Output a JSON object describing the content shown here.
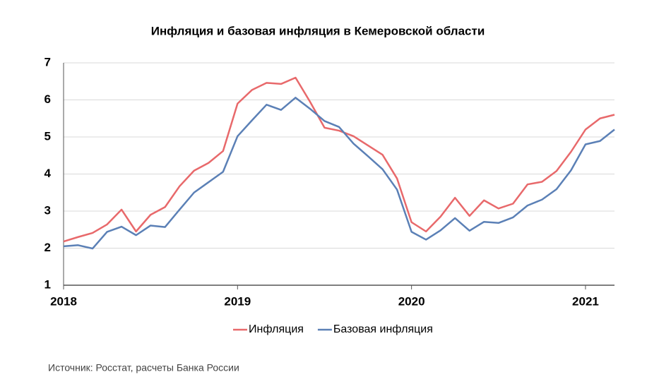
{
  "chart_data": {
    "type": "line",
    "title": "Инфляция и базовая инфляция в Кемеровской области",
    "categories": [
      "2018",
      null,
      null,
      null,
      null,
      null,
      null,
      null,
      null,
      null,
      null,
      null,
      "2019",
      null,
      null,
      null,
      null,
      null,
      null,
      null,
      null,
      null,
      null,
      null,
      "2020",
      null,
      null,
      null,
      null,
      null,
      null,
      null,
      null,
      null,
      null,
      null,
      "2021",
      null,
      null
    ],
    "series": [
      {
        "name": "Инфляция",
        "color": "#e8696b",
        "values": [
          2.18,
          2.3,
          2.41,
          2.64,
          3.04,
          2.45,
          2.9,
          3.11,
          3.67,
          4.09,
          4.3,
          4.62,
          5.9,
          6.27,
          6.46,
          6.43,
          6.6,
          5.95,
          5.25,
          5.17,
          5.02,
          4.77,
          4.52,
          3.88,
          2.7,
          2.45,
          2.85,
          3.36,
          2.87,
          3.29,
          3.07,
          3.2,
          3.72,
          3.79,
          4.08,
          4.6,
          5.2,
          5.5,
          5.6
        ]
      },
      {
        "name": "Базовая инфляция",
        "color": "#5b80b6",
        "values": [
          2.05,
          2.08,
          1.99,
          2.44,
          2.58,
          2.35,
          2.61,
          2.57,
          3.04,
          3.5,
          3.78,
          4.06,
          5.02,
          5.45,
          5.87,
          5.73,
          6.06,
          5.76,
          5.43,
          5.27,
          4.82,
          4.48,
          4.13,
          3.58,
          2.44,
          2.23,
          2.48,
          2.81,
          2.47,
          2.71,
          2.68,
          2.83,
          3.15,
          3.31,
          3.59,
          4.1,
          4.8,
          4.89,
          5.2
        ]
      }
    ],
    "ylim": [
      1,
      7
    ],
    "yticks": [
      1,
      2,
      3,
      4,
      5,
      6,
      7
    ],
    "grid": true,
    "legend": "bottom",
    "source": "Источник: Росстат, расчеты Банка России"
  }
}
